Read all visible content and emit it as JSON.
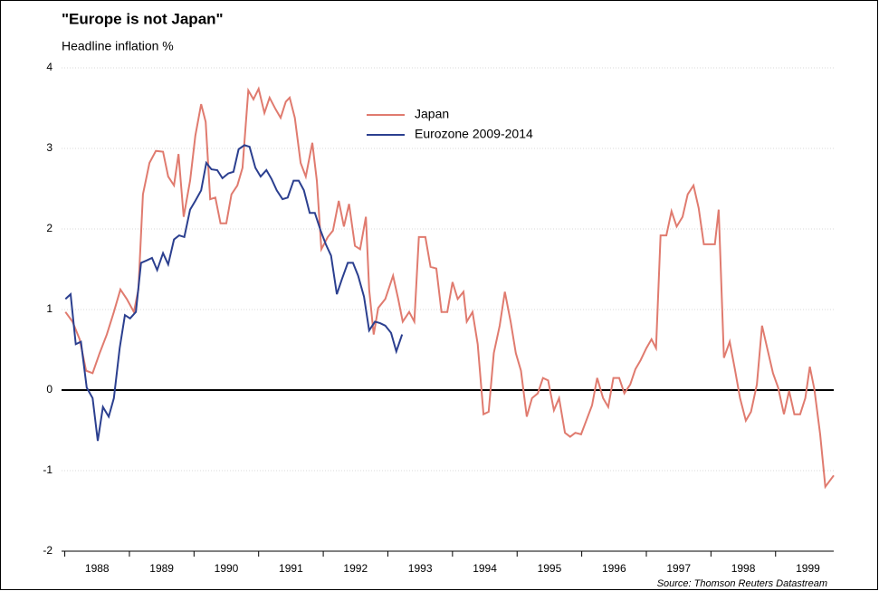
{
  "chart_data": {
    "type": "line",
    "title": "\"Europe is not Japan\"",
    "subtitle": "Headline inflation %",
    "source": "Source: Thomson Reuters Datastream",
    "xlim": [
      1987.95,
      1999.9
    ],
    "xticks": [
      1988,
      1989,
      1990,
      1991,
      1992,
      1993,
      1994,
      1995,
      1996,
      1997,
      1998,
      1999
    ],
    "ylim": [
      -2,
      4
    ],
    "yticks": [
      -2,
      -1,
      0,
      1,
      2,
      3,
      4
    ],
    "grid": true,
    "zero_line": true,
    "series": [
      {
        "name": "Japan",
        "color": "#e07b6f",
        "x": [
          1988.01,
          1988.12,
          1988.23,
          1988.33,
          1988.43,
          1988.54,
          1988.65,
          1988.76,
          1988.86,
          1988.96,
          1989.07,
          1989.14,
          1989.21,
          1989.31,
          1989.41,
          1989.52,
          1989.6,
          1989.69,
          1989.76,
          1989.84,
          1989.94,
          1990.02,
          1990.11,
          1990.18,
          1990.25,
          1990.33,
          1990.41,
          1990.5,
          1990.58,
          1990.67,
          1990.75,
          1990.84,
          1990.92,
          1991.0,
          1991.09,
          1991.17,
          1991.26,
          1991.34,
          1991.42,
          1991.48,
          1991.56,
          1991.65,
          1991.73,
          1991.83,
          1991.9,
          1991.97,
          1992.07,
          1992.15,
          1992.24,
          1992.32,
          1992.4,
          1992.49,
          1992.57,
          1992.66,
          1992.71,
          1992.78,
          1992.85,
          1992.96,
          1993.08,
          1993.16,
          1993.23,
          1993.33,
          1993.41,
          1993.48,
          1993.58,
          1993.66,
          1993.75,
          1993.83,
          1993.92,
          1994.0,
          1994.08,
          1994.17,
          1994.22,
          1994.31,
          1994.39,
          1994.48,
          1994.56,
          1994.64,
          1994.73,
          1994.81,
          1994.9,
          1994.98,
          1995.06,
          1995.15,
          1995.23,
          1995.32,
          1995.4,
          1995.48,
          1995.57,
          1995.65,
          1995.74,
          1995.82,
          1995.9,
          1995.99,
          1996.07,
          1996.16,
          1996.24,
          1996.33,
          1996.41,
          1996.49,
          1996.58,
          1996.66,
          1996.75,
          1996.83,
          1996.91,
          1997.0,
          1997.08,
          1997.15,
          1997.22,
          1997.31,
          1997.39,
          1997.47,
          1997.56,
          1997.64,
          1997.73,
          1997.81,
          1997.89,
          1997.98,
          1998.06,
          1998.12,
          1998.2,
          1998.29,
          1998.37,
          1998.45,
          1998.54,
          1998.62,
          1998.71,
          1998.79,
          1998.87,
          1998.96,
          1999.04,
          1999.13,
          1999.21,
          1999.29,
          1999.38,
          1999.46,
          1999.53,
          1999.6,
          1999.69,
          1999.77,
          1999.9
        ],
        "values": [
          0.97,
          0.85,
          0.63,
          0.24,
          0.21,
          0.46,
          0.69,
          0.97,
          1.25,
          1.13,
          0.97,
          1.25,
          2.43,
          2.82,
          2.97,
          2.96,
          2.65,
          2.54,
          2.93,
          2.15,
          2.6,
          3.16,
          3.55,
          3.33,
          2.37,
          2.39,
          2.07,
          2.07,
          2.43,
          2.54,
          2.76,
          3.72,
          3.61,
          3.74,
          3.44,
          3.63,
          3.49,
          3.38,
          3.58,
          3.63,
          3.38,
          2.82,
          2.65,
          3.07,
          2.6,
          1.75,
          1.9,
          1.98,
          2.35,
          2.03,
          2.31,
          1.79,
          1.75,
          2.15,
          1.25,
          0.69,
          1.02,
          1.13,
          1.42,
          1.13,
          0.85,
          0.97,
          0.85,
          1.9,
          1.9,
          1.53,
          1.51,
          0.97,
          0.97,
          1.34,
          1.13,
          1.22,
          0.85,
          0.97,
          0.57,
          -0.3,
          -0.27,
          0.46,
          0.8,
          1.22,
          0.85,
          0.46,
          0.24,
          -0.33,
          -0.1,
          -0.04,
          0.15,
          0.12,
          -0.25,
          -0.1,
          -0.53,
          -0.58,
          -0.53,
          -0.55,
          -0.38,
          -0.19,
          0.15,
          -0.1,
          -0.21,
          0.15,
          0.15,
          -0.04,
          0.07,
          0.26,
          0.37,
          0.52,
          0.63,
          0.52,
          1.92,
          1.92,
          2.22,
          2.03,
          2.15,
          2.43,
          2.54,
          2.26,
          1.81,
          1.81,
          1.81,
          2.24,
          0.4,
          0.6,
          0.26,
          -0.1,
          -0.38,
          -0.27,
          0.07,
          0.8,
          0.52,
          0.21,
          0.03,
          -0.3,
          -0.01,
          -0.3,
          -0.3,
          -0.1,
          0.29,
          0.01,
          -0.55,
          -1.2,
          -1.06
        ]
      },
      {
        "name": "Eurozone 2009-2014",
        "color": "#2b3f8f",
        "x": [
          1988.01,
          1988.09,
          1988.17,
          1988.25,
          1988.34,
          1988.43,
          1988.51,
          1988.59,
          1988.68,
          1988.76,
          1988.85,
          1988.93,
          1989.01,
          1989.1,
          1989.18,
          1989.27,
          1989.35,
          1989.43,
          1989.52,
          1989.6,
          1989.69,
          1989.77,
          1989.85,
          1989.94,
          1990.02,
          1990.11,
          1990.19,
          1990.27,
          1990.36,
          1990.44,
          1990.53,
          1990.61,
          1990.69,
          1990.78,
          1990.86,
          1990.95,
          1991.03,
          1991.12,
          1991.2,
          1991.28,
          1991.37,
          1991.45,
          1991.54,
          1991.62,
          1991.7,
          1991.79,
          1991.87,
          1991.96,
          1992.04,
          1992.12,
          1992.21,
          1992.29,
          1992.38,
          1992.46,
          1992.54,
          1992.63,
          1992.71,
          1992.8,
          1992.88,
          1992.96,
          1993.05,
          1993.13,
          1993.22
        ],
        "values": [
          1.13,
          1.19,
          0.57,
          0.6,
          0.03,
          -0.1,
          -0.63,
          -0.21,
          -0.33,
          -0.1,
          0.52,
          0.93,
          0.89,
          0.97,
          1.58,
          1.61,
          1.64,
          1.49,
          1.7,
          1.56,
          1.87,
          1.92,
          1.9,
          2.24,
          2.35,
          2.48,
          2.82,
          2.74,
          2.73,
          2.63,
          2.69,
          2.71,
          2.99,
          3.04,
          3.02,
          2.76,
          2.65,
          2.73,
          2.62,
          2.48,
          2.37,
          2.39,
          2.6,
          2.6,
          2.48,
          2.2,
          2.2,
          1.98,
          1.81,
          1.67,
          1.19,
          1.38,
          1.58,
          1.58,
          1.42,
          1.16,
          0.74,
          0.85,
          0.83,
          0.8,
          0.71,
          0.48,
          0.69
        ]
      }
    ]
  }
}
